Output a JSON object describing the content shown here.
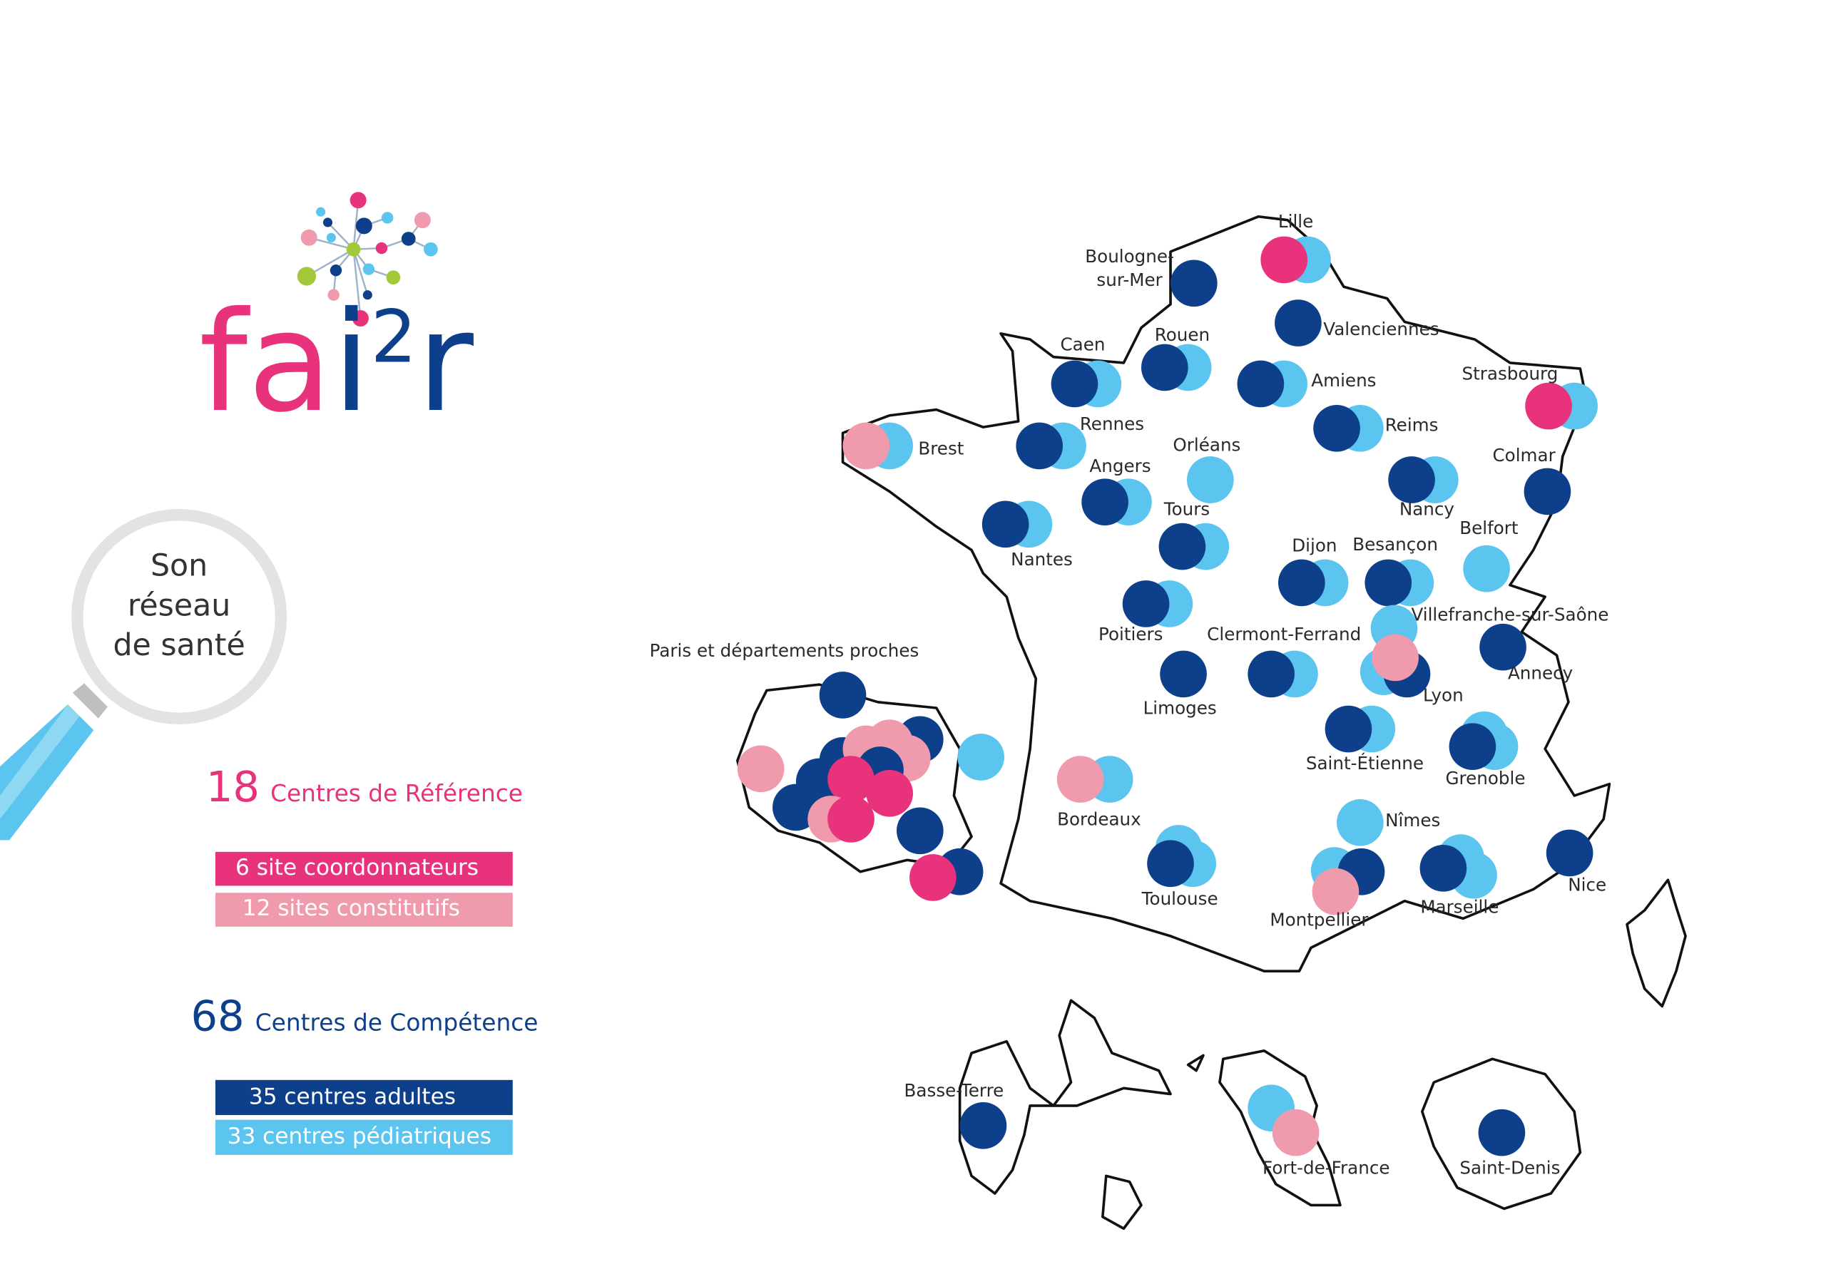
{
  "logo": {
    "part1": "fa",
    "part2": "i",
    "superscript": "2",
    "part3": "r"
  },
  "magnifier": {
    "lines": [
      "Son",
      "réseau",
      "de santé"
    ]
  },
  "reference": {
    "count": 18,
    "label": "Centres de Référence",
    "items": [
      "6 site coordonnateurs",
      "12 sites constitutifs"
    ]
  },
  "competence": {
    "count": 68,
    "label": "Centres de Compétence",
    "items": [
      "35 centres adultes",
      "33 centres pédiatriques"
    ]
  },
  "paris_label": "Paris et départements proches",
  "cities": [
    "Lille",
    [
      "Boulogne-",
      "sur-Mer"
    ],
    "Valenciennes",
    "Caen",
    "Rouen",
    "Amiens",
    "Strasbourg",
    "Brest",
    "Rennes",
    "Reims",
    "Orléans",
    "Colmar",
    "Angers",
    "Nancy",
    "Tours",
    "Nantes",
    "Belfort",
    "Dijon",
    "Besançon",
    "Poitiers",
    "Villefranche-sur-Saône",
    "Clermont-Ferrand",
    "Annecy",
    "Lyon",
    "Limoges",
    "Saint-Étienne",
    "Grenoble",
    "Bordeaux",
    "Nîmes",
    "Toulouse",
    "Montpellier",
    "Marseille",
    "Nice",
    "Basse-Terre",
    "Fort-de-France",
    "Saint-Denis"
  ]
}
